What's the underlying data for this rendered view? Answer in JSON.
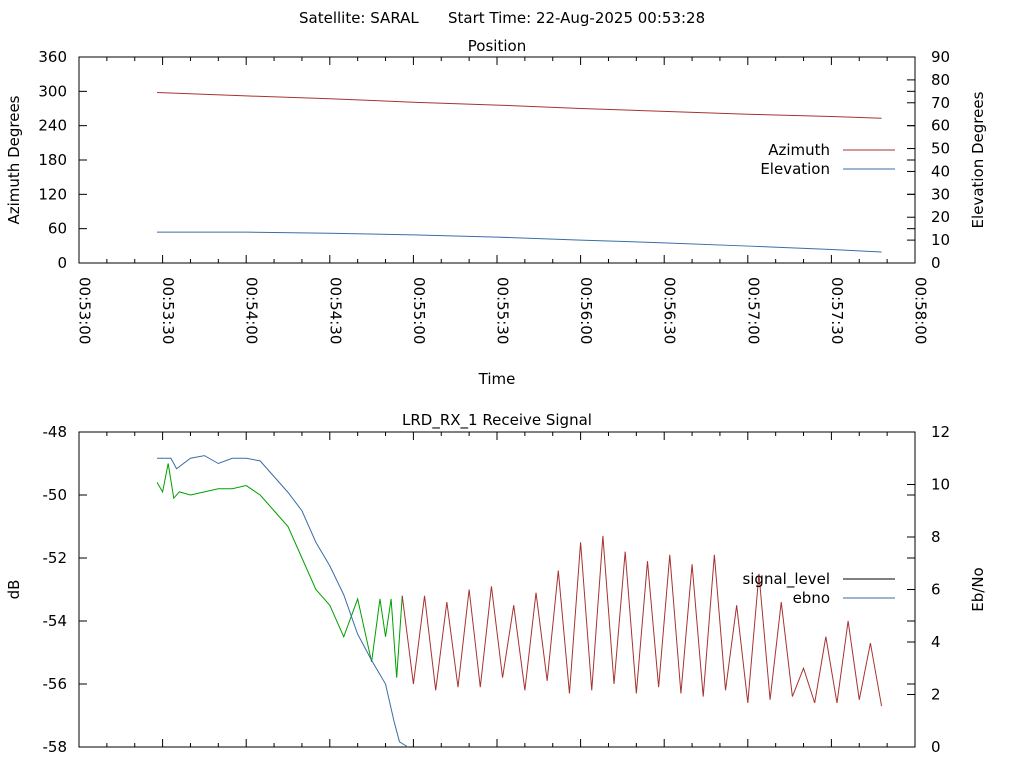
{
  "header": {
    "satellite": "Satellite: SARAL",
    "start_time": "Start Time: 22-Aug-2025 00:53:28"
  },
  "chart_data": [
    {
      "type": "line",
      "title": "Position",
      "xlabel": "Time",
      "ylabel": "Azimuth Degrees",
      "y2label": "Elevation Degrees",
      "xlim": [
        "00:53:00",
        "00:58:00"
      ],
      "x_ticks": [
        "00:53:00",
        "00:53:30",
        "00:54:00",
        "00:54:30",
        "00:55:00",
        "00:55:30",
        "00:56:00",
        "00:56:30",
        "00:57:00",
        "00:57:30",
        "00:58:00"
      ],
      "ylim": [
        0,
        360
      ],
      "y_ticks": [
        0,
        60,
        120,
        180,
        240,
        300,
        360
      ],
      "y2lim": [
        0,
        90
      ],
      "y2_ticks": [
        0,
        10,
        20,
        30,
        40,
        50,
        60,
        70,
        80,
        90
      ],
      "grid": false,
      "legend": "right",
      "series": [
        {
          "name": "Azimuth",
          "axis": "y",
          "color": "#a83232",
          "x": [
            "00:53:28",
            "00:54:00",
            "00:54:30",
            "00:55:00",
            "00:55:30",
            "00:56:00",
            "00:56:30",
            "00:57:00",
            "00:57:30",
            "00:57:48"
          ],
          "values": [
            298,
            292,
            287,
            281,
            276,
            270,
            265,
            260,
            256,
            253
          ]
        },
        {
          "name": "Elevation",
          "axis": "y2",
          "color": "#3a6ea5",
          "x": [
            "00:53:28",
            "00:54:00",
            "00:54:30",
            "00:55:00",
            "00:55:30",
            "00:56:00",
            "00:56:30",
            "00:57:00",
            "00:57:30",
            "00:57:48"
          ],
          "values": [
            13.5,
            13.5,
            13,
            12.3,
            11.3,
            10,
            8.8,
            7.4,
            5.9,
            4.8
          ]
        }
      ]
    },
    {
      "type": "line",
      "title": "LRD_RX_1 Receive Signal",
      "xlabel": "",
      "ylabel": "dB",
      "y2label": "Eb/No",
      "xlim": [
        "00:53:00",
        "00:58:00"
      ],
      "ylim": [
        -58,
        -48
      ],
      "y_ticks": [
        -58,
        -56,
        -54,
        -52,
        -50,
        -48
      ],
      "y2lim": [
        0,
        12
      ],
      "y2_ticks": [
        0,
        2,
        4,
        6,
        8,
        10,
        12
      ],
      "grid": false,
      "legend": "right",
      "series": [
        {
          "name": "signal_level",
          "legend_color": "#000000",
          "color_segments": [
            {
              "until": "00:54:56",
              "color": "#00a000"
            },
            {
              "until": "00:57:48",
              "color": "#a83232"
            }
          ],
          "x": [
            "00:53:28",
            "00:53:30",
            "00:53:32",
            "00:53:34",
            "00:53:36",
            "00:53:40",
            "00:53:45",
            "00:53:50",
            "00:53:55",
            "00:54:00",
            "00:54:05",
            "00:54:10",
            "00:54:15",
            "00:54:20",
            "00:54:25",
            "00:54:30",
            "00:54:35",
            "00:54:40",
            "00:54:45",
            "00:54:48",
            "00:54:50",
            "00:54:52",
            "00:54:54",
            "00:54:56",
            "00:55:00",
            "00:55:04",
            "00:55:08",
            "00:55:12",
            "00:55:16",
            "00:55:20",
            "00:55:24",
            "00:55:28",
            "00:55:32",
            "00:55:36",
            "00:55:40",
            "00:55:44",
            "00:55:48",
            "00:55:52",
            "00:55:56",
            "00:56:00",
            "00:56:04",
            "00:56:08",
            "00:56:12",
            "00:56:16",
            "00:56:20",
            "00:56:24",
            "00:56:28",
            "00:56:32",
            "00:56:36",
            "00:56:40",
            "00:56:44",
            "00:56:48",
            "00:56:52",
            "00:56:56",
            "00:57:00",
            "00:57:04",
            "00:57:08",
            "00:57:12",
            "00:57:16",
            "00:57:20",
            "00:57:24",
            "00:57:28",
            "00:57:32",
            "00:57:36",
            "00:57:40",
            "00:57:44",
            "00:57:48"
          ],
          "values": [
            -49.6,
            -49.9,
            -49.0,
            -50.1,
            -49.9,
            -50.0,
            -49.9,
            -49.8,
            -49.8,
            -49.7,
            -50.0,
            -50.5,
            -51.0,
            -52.0,
            -53.0,
            -53.5,
            -54.5,
            -53.3,
            -55.3,
            -53.3,
            -54.5,
            -53.3,
            -55.8,
            -53.2,
            -56.0,
            -53.2,
            -56.2,
            -53.4,
            -56.1,
            -53.0,
            -56.1,
            -52.9,
            -55.8,
            -53.5,
            -56.2,
            -53.1,
            -55.9,
            -52.4,
            -56.3,
            -51.5,
            -56.2,
            -51.3,
            -56.0,
            -51.8,
            -56.3,
            -52.1,
            -56.1,
            -51.9,
            -56.3,
            -52.2,
            -56.4,
            -51.9,
            -56.2,
            -53.5,
            -56.6,
            -52.5,
            -56.5,
            -53.4,
            -56.4,
            -55.5,
            -56.6,
            -54.5,
            -56.6,
            -54.0,
            -56.5,
            -54.7,
            -56.7
          ]
        },
        {
          "name": "ebno",
          "axis": "y2",
          "color": "#3a6ea5",
          "x": [
            "00:53:28",
            "00:53:33",
            "00:53:35",
            "00:53:40",
            "00:53:45",
            "00:53:50",
            "00:53:55",
            "00:54:00",
            "00:54:05",
            "00:54:10",
            "00:54:15",
            "00:54:20",
            "00:54:25",
            "00:54:30",
            "00:54:35",
            "00:54:40",
            "00:54:45",
            "00:54:50",
            "00:54:53",
            "00:54:55",
            "00:54:58"
          ],
          "values": [
            11.0,
            11.0,
            10.6,
            11.0,
            11.1,
            10.8,
            11.0,
            11.0,
            10.9,
            10.3,
            9.7,
            9.0,
            7.8,
            6.9,
            5.8,
            4.3,
            3.3,
            2.4,
            1.0,
            0.2,
            0
          ]
        }
      ]
    }
  ]
}
